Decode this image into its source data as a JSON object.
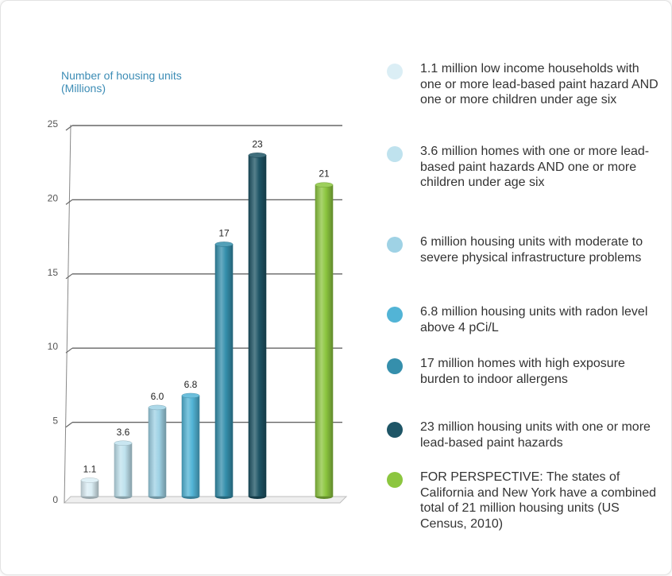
{
  "chart_data": {
    "type": "bar",
    "ylabel": "Number of housing units (Millions)",
    "ylim": [
      0,
      25
    ],
    "yticks": [
      0,
      5,
      10,
      15,
      20,
      25
    ],
    "grid": true,
    "legend_placement": "right",
    "categories": [
      "1.1 million low income households with one or more lead-based paint hazard AND one or more children under age six",
      "3.6 million homes with one or more lead-based paint hazards AND one or more children under age six",
      "6 million housing units with moderate to severe physical infrastructure problems",
      "6.8 million housing units with radon level above 4 pCi/L",
      "17 million homes with high exposure burden to indoor allergens",
      "23 million housing units with one or more lead-based paint hazards",
      "FOR PERSPECTIVE: The states of California and New York have a combined total of 21 million housing units (US Census, 2010)"
    ],
    "values": [
      1.1,
      3.6,
      6.0,
      6.8,
      17,
      23,
      21
    ],
    "data_labels": [
      "1.1",
      "3.6",
      "6.0",
      "6.8",
      "17",
      "23",
      "21"
    ],
    "colors": [
      "#dbeef5",
      "#bfe2ee",
      "#9fd2e5",
      "#52b4d6",
      "#358fac",
      "#1e5566",
      "#8cc63f"
    ]
  }
}
